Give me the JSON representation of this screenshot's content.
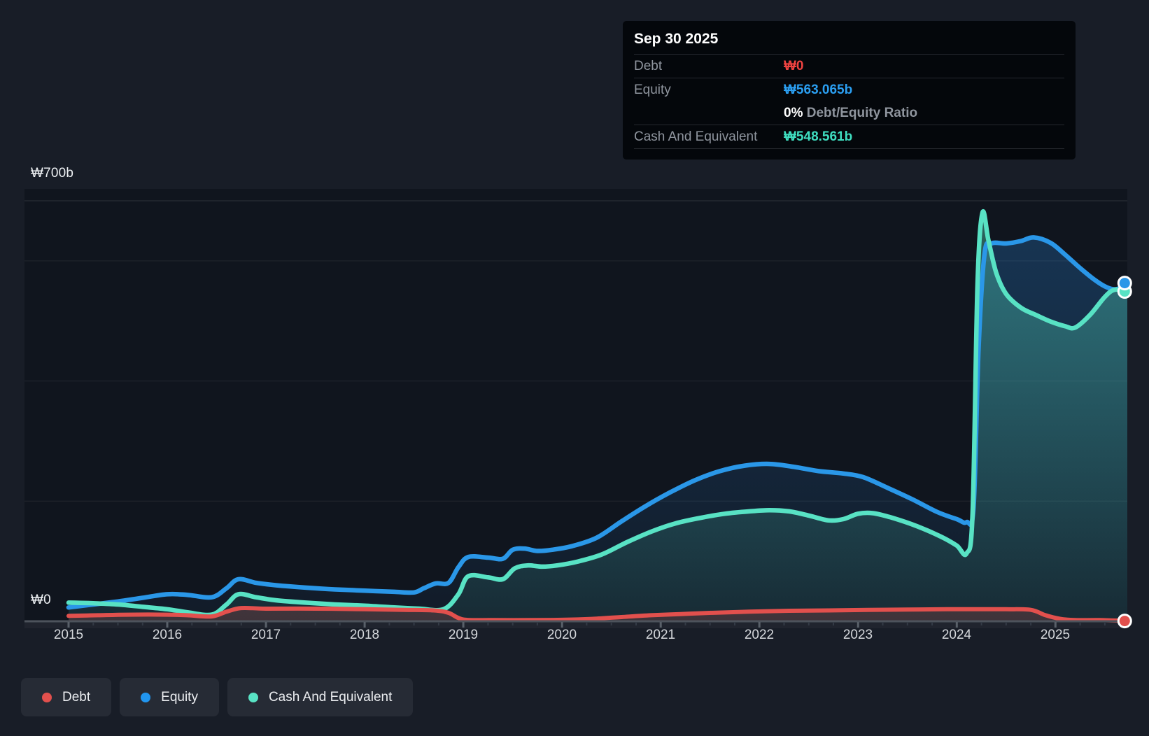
{
  "tooltip": {
    "date": "Sep 30 2025",
    "debt_label": "Debt",
    "debt_value": "₩0",
    "equity_label": "Equity",
    "equity_value": "₩563.065b",
    "ratio_value": "0%",
    "ratio_label": "Debt/Equity Ratio",
    "cash_label": "Cash And Equivalent",
    "cash_value": "₩548.561b"
  },
  "y_axis": {
    "max_label": "₩700b",
    "zero_label": "₩0"
  },
  "x_axis": {
    "years": [
      "2015",
      "2016",
      "2017",
      "2018",
      "2019",
      "2020",
      "2021",
      "2022",
      "2023",
      "2024",
      "2025"
    ]
  },
  "legend": {
    "items": [
      {
        "label": "Debt",
        "color": "#e2504d"
      },
      {
        "label": "Equity",
        "color": "#2196f0"
      },
      {
        "label": "Cash And Equivalent",
        "color": "#58e2c4"
      }
    ]
  },
  "colors": {
    "page_bg": "#181d27",
    "plot_bg": "#10151e",
    "axis": "#4d535c",
    "gridline": "rgba(255,255,255,0.08)",
    "debt_line": "#e2504d",
    "equity_line": "#2a97e8",
    "cash_line": "#58e2c4"
  },
  "chart_data": {
    "type": "area",
    "title": "Debt, Equity and Cash history (₩ billions)",
    "x_range": [
      2015,
      2025.75
    ],
    "ylim": [
      0,
      700
    ],
    "y_unit": "billions KRW",
    "gridline_values": [
      700,
      600,
      400,
      200
    ],
    "legend_position": "bottom-left",
    "series": [
      {
        "name": "Equity",
        "color": "#2a97e8",
        "end_value": 563.065,
        "points": [
          [
            2015.0,
            23
          ],
          [
            2015.25,
            28
          ],
          [
            2015.5,
            33
          ],
          [
            2015.75,
            39
          ],
          [
            2016.0,
            45
          ],
          [
            2016.2,
            44
          ],
          [
            2016.45,
            40
          ],
          [
            2016.6,
            55
          ],
          [
            2016.72,
            70
          ],
          [
            2016.9,
            64
          ],
          [
            2017.1,
            60
          ],
          [
            2017.4,
            56
          ],
          [
            2017.7,
            53
          ],
          [
            2018.0,
            51
          ],
          [
            2018.3,
            49
          ],
          [
            2018.5,
            48
          ],
          [
            2018.6,
            55
          ],
          [
            2018.72,
            63
          ],
          [
            2018.85,
            64
          ],
          [
            2018.95,
            90
          ],
          [
            2019.05,
            107
          ],
          [
            2019.25,
            106
          ],
          [
            2019.4,
            104
          ],
          [
            2019.5,
            119
          ],
          [
            2019.62,
            121
          ],
          [
            2019.75,
            117
          ],
          [
            2019.9,
            119
          ],
          [
            2020.1,
            125
          ],
          [
            2020.35,
            139
          ],
          [
            2020.6,
            166
          ],
          [
            2020.85,
            192
          ],
          [
            2021.1,
            215
          ],
          [
            2021.35,
            235
          ],
          [
            2021.6,
            250
          ],
          [
            2021.85,
            259
          ],
          [
            2022.1,
            262
          ],
          [
            2022.35,
            257
          ],
          [
            2022.6,
            250
          ],
          [
            2022.85,
            246
          ],
          [
            2023.05,
            240
          ],
          [
            2023.3,
            222
          ],
          [
            2023.55,
            203
          ],
          [
            2023.8,
            182
          ],
          [
            2024.0,
            170
          ],
          [
            2024.1,
            165
          ],
          [
            2024.17,
            190
          ],
          [
            2024.22,
            450
          ],
          [
            2024.28,
            610
          ],
          [
            2024.35,
            629
          ],
          [
            2024.5,
            629
          ],
          [
            2024.65,
            633
          ],
          [
            2024.78,
            639
          ],
          [
            2024.95,
            630
          ],
          [
            2025.1,
            610
          ],
          [
            2025.25,
            588
          ],
          [
            2025.4,
            568
          ],
          [
            2025.52,
            556
          ],
          [
            2025.62,
            553
          ],
          [
            2025.73,
            563
          ]
        ]
      },
      {
        "name": "Cash And Equivalent",
        "color": "#58e2c4",
        "end_value": 548.561,
        "points": [
          [
            2015.0,
            31
          ],
          [
            2015.25,
            30
          ],
          [
            2015.5,
            28
          ],
          [
            2015.75,
            24
          ],
          [
            2016.0,
            20
          ],
          [
            2016.2,
            15
          ],
          [
            2016.45,
            11
          ],
          [
            2016.6,
            28
          ],
          [
            2016.72,
            45
          ],
          [
            2016.9,
            40
          ],
          [
            2017.1,
            35
          ],
          [
            2017.4,
            31
          ],
          [
            2017.7,
            28
          ],
          [
            2018.0,
            26
          ],
          [
            2018.3,
            23
          ],
          [
            2018.55,
            21
          ],
          [
            2018.8,
            20
          ],
          [
            2018.95,
            45
          ],
          [
            2019.05,
            75
          ],
          [
            2019.25,
            73
          ],
          [
            2019.4,
            70
          ],
          [
            2019.52,
            88
          ],
          [
            2019.65,
            93
          ],
          [
            2019.8,
            91
          ],
          [
            2019.95,
            93
          ],
          [
            2020.15,
            99
          ],
          [
            2020.4,
            111
          ],
          [
            2020.65,
            131
          ],
          [
            2020.9,
            149
          ],
          [
            2021.15,
            163
          ],
          [
            2021.4,
            172
          ],
          [
            2021.65,
            179
          ],
          [
            2021.9,
            183
          ],
          [
            2022.1,
            185
          ],
          [
            2022.3,
            183
          ],
          [
            2022.5,
            176
          ],
          [
            2022.7,
            168
          ],
          [
            2022.85,
            170
          ],
          [
            2023.0,
            179
          ],
          [
            2023.15,
            180
          ],
          [
            2023.35,
            172
          ],
          [
            2023.6,
            158
          ],
          [
            2023.85,
            140
          ],
          [
            2024.0,
            126
          ],
          [
            2024.1,
            113
          ],
          [
            2024.16,
            180
          ],
          [
            2024.21,
            560
          ],
          [
            2024.26,
            680
          ],
          [
            2024.32,
            635
          ],
          [
            2024.4,
            580
          ],
          [
            2024.5,
            545
          ],
          [
            2024.65,
            522
          ],
          [
            2024.8,
            510
          ],
          [
            2024.95,
            499
          ],
          [
            2025.1,
            491
          ],
          [
            2025.2,
            489
          ],
          [
            2025.35,
            510
          ],
          [
            2025.5,
            540
          ],
          [
            2025.6,
            552
          ],
          [
            2025.73,
            549
          ]
        ]
      },
      {
        "name": "Debt",
        "color": "#e2504d",
        "end_value": 0,
        "points": [
          [
            2015.0,
            9
          ],
          [
            2015.3,
            10
          ],
          [
            2015.6,
            11
          ],
          [
            2016.0,
            11
          ],
          [
            2016.2,
            10
          ],
          [
            2016.45,
            8
          ],
          [
            2016.6,
            16
          ],
          [
            2016.75,
            22
          ],
          [
            2017.0,
            21
          ],
          [
            2017.5,
            21
          ],
          [
            2018.0,
            20
          ],
          [
            2018.4,
            19
          ],
          [
            2018.7,
            18
          ],
          [
            2018.85,
            14
          ],
          [
            2019.0,
            3
          ],
          [
            2019.3,
            2
          ],
          [
            2019.7,
            2
          ],
          [
            2020.0,
            2.5
          ],
          [
            2020.3,
            4
          ],
          [
            2020.6,
            7
          ],
          [
            2020.9,
            10
          ],
          [
            2021.2,
            12
          ],
          [
            2021.5,
            14
          ],
          [
            2021.9,
            16
          ],
          [
            2022.3,
            17.5
          ],
          [
            2022.7,
            18
          ],
          [
            2023.1,
            19
          ],
          [
            2023.5,
            19.5
          ],
          [
            2023.9,
            20
          ],
          [
            2024.2,
            20
          ],
          [
            2024.5,
            20
          ],
          [
            2024.75,
            19
          ],
          [
            2024.9,
            10
          ],
          [
            2025.05,
            4
          ],
          [
            2025.2,
            2
          ],
          [
            2025.45,
            2
          ],
          [
            2025.73,
            0.5
          ]
        ]
      }
    ]
  }
}
